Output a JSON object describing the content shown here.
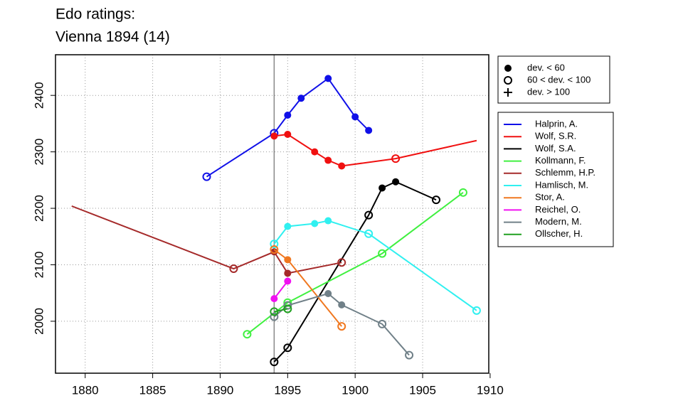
{
  "chart_data": {
    "type": "line",
    "title": [
      "Edo ratings:",
      "Vienna 1894 (14)"
    ],
    "xlim": [
      1877.8,
      1909.9
    ],
    "ylim": [
      1908,
      2472
    ],
    "xticks": [
      1880,
      1885,
      1890,
      1895,
      1900,
      1905,
      1910
    ],
    "yticks": [
      2000,
      2100,
      2200,
      2300,
      2400
    ],
    "grid": true,
    "vline": 1894,
    "vline_color": "#888888",
    "marker_legend": [
      {
        "label": "dev. < 60",
        "marker": "filled"
      },
      {
        "label": "60 < dev. < 100",
        "marker": "open"
      },
      {
        "label": "dev. > 100",
        "marker": "plus"
      }
    ],
    "series": [
      {
        "name": "Halprin, A.",
        "color": "#1010e8",
        "x": [
          1889,
          1894,
          1895,
          1896,
          1898,
          1900,
          1901
        ],
        "values": [
          2256,
          2333,
          2365,
          2395,
          2430,
          2362,
          2338
        ],
        "markers": [
          "open",
          "open",
          "filled",
          "filled",
          "filled",
          "filled",
          "filled"
        ]
      },
      {
        "name": "Wolf, S.R.",
        "color": "#f01010",
        "x": [
          1894,
          1895,
          1897,
          1898,
          1899,
          1903,
          1909
        ],
        "values": [
          2328,
          2331,
          2300,
          2285,
          2275,
          2288,
          2320
        ],
        "markers": [
          "filled",
          "filled",
          "filled",
          "filled",
          "filled",
          "open",
          "none"
        ]
      },
      {
        "name": "Wolf, S.A.",
        "color": "#000000",
        "x": [
          1894,
          1895,
          1901,
          1902,
          1903,
          1906
        ],
        "values": [
          1928,
          1953,
          2188,
          2236,
          2247,
          2215
        ],
        "markers": [
          "open",
          "open",
          "open",
          "filled",
          "filled",
          "open"
        ]
      },
      {
        "name": "Kollmann, F.",
        "color": "#40f040",
        "x": [
          1892,
          1895,
          1902,
          1908
        ],
        "values": [
          1977,
          2033,
          2120,
          2228
        ],
        "markers": [
          "open",
          "open",
          "open",
          "open"
        ]
      },
      {
        "name": "Schlemm, H.P.",
        "color": "#a52a2a",
        "x": [
          1879,
          1891,
          1894,
          1895,
          1899
        ],
        "values": [
          2204,
          2093,
          2123,
          2085,
          2104
        ],
        "markers": [
          "none",
          "open",
          "filled",
          "filled",
          "open"
        ]
      },
      {
        "name": "Hamlisch, M.",
        "color": "#30f0f0",
        "x": [
          1894,
          1895,
          1897,
          1898,
          1901,
          1909
        ],
        "values": [
          2137,
          2168,
          2173,
          2178,
          2155,
          2019
        ],
        "markers": [
          "open",
          "filled",
          "filled",
          "filled",
          "open",
          "open"
        ]
      },
      {
        "name": "Stor, A.",
        "color": "#f07820",
        "x": [
          1894,
          1895,
          1899
        ],
        "values": [
          2127,
          2109,
          1991
        ],
        "markers": [
          "open",
          "filled",
          "open"
        ]
      },
      {
        "name": "Reichel, O.",
        "color": "#f010f0",
        "x": [
          1894,
          1895
        ],
        "values": [
          2040,
          2071
        ],
        "markers": [
          "filled",
          "filled"
        ]
      },
      {
        "name": "Modern, M.",
        "color": "#708088",
        "x": [
          1894,
          1895,
          1898,
          1899,
          1902,
          1904
        ],
        "values": [
          2008,
          2028,
          2049,
          2029,
          1995,
          1940
        ],
        "markers": [
          "open",
          "open",
          "filled",
          "filled",
          "open",
          "open"
        ]
      },
      {
        "name": "Ollscher, H.",
        "color": "#20a020",
        "x": [
          1894,
          1895
        ],
        "values": [
          2017,
          2022
        ],
        "markers": [
          "open",
          "open"
        ]
      }
    ]
  }
}
